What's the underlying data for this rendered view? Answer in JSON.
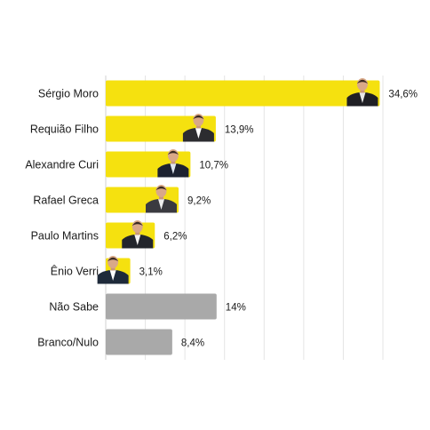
{
  "chart_data": {
    "type": "bar",
    "orientation": "horizontal",
    "categories": [
      "Sérgio Moro",
      "Requião Filho",
      "Alexandre Curi",
      "Rafael Greca",
      "Paulo Martins",
      "Ênio Verri",
      "Não Sabe",
      "Branco/Nulo"
    ],
    "values": [
      34.6,
      13.9,
      10.7,
      9.2,
      6.2,
      3.1,
      14,
      8.4
    ],
    "value_labels": [
      "34,6%",
      "13,9%",
      "10,7%",
      "9,2%",
      "6,2%",
      "3,1%",
      "14%",
      "8,4%"
    ],
    "has_photo": [
      true,
      true,
      true,
      true,
      true,
      true,
      false,
      false
    ],
    "bar_colors": [
      "#f5e10f",
      "#f5e10f",
      "#f5e10f",
      "#f5e10f",
      "#f5e10f",
      "#f5e10f",
      "#a9a9a9",
      "#a9a9a9"
    ],
    "xlim": [
      0,
      35
    ],
    "grid": true,
    "title": "",
    "xlabel": "",
    "ylabel": ""
  }
}
